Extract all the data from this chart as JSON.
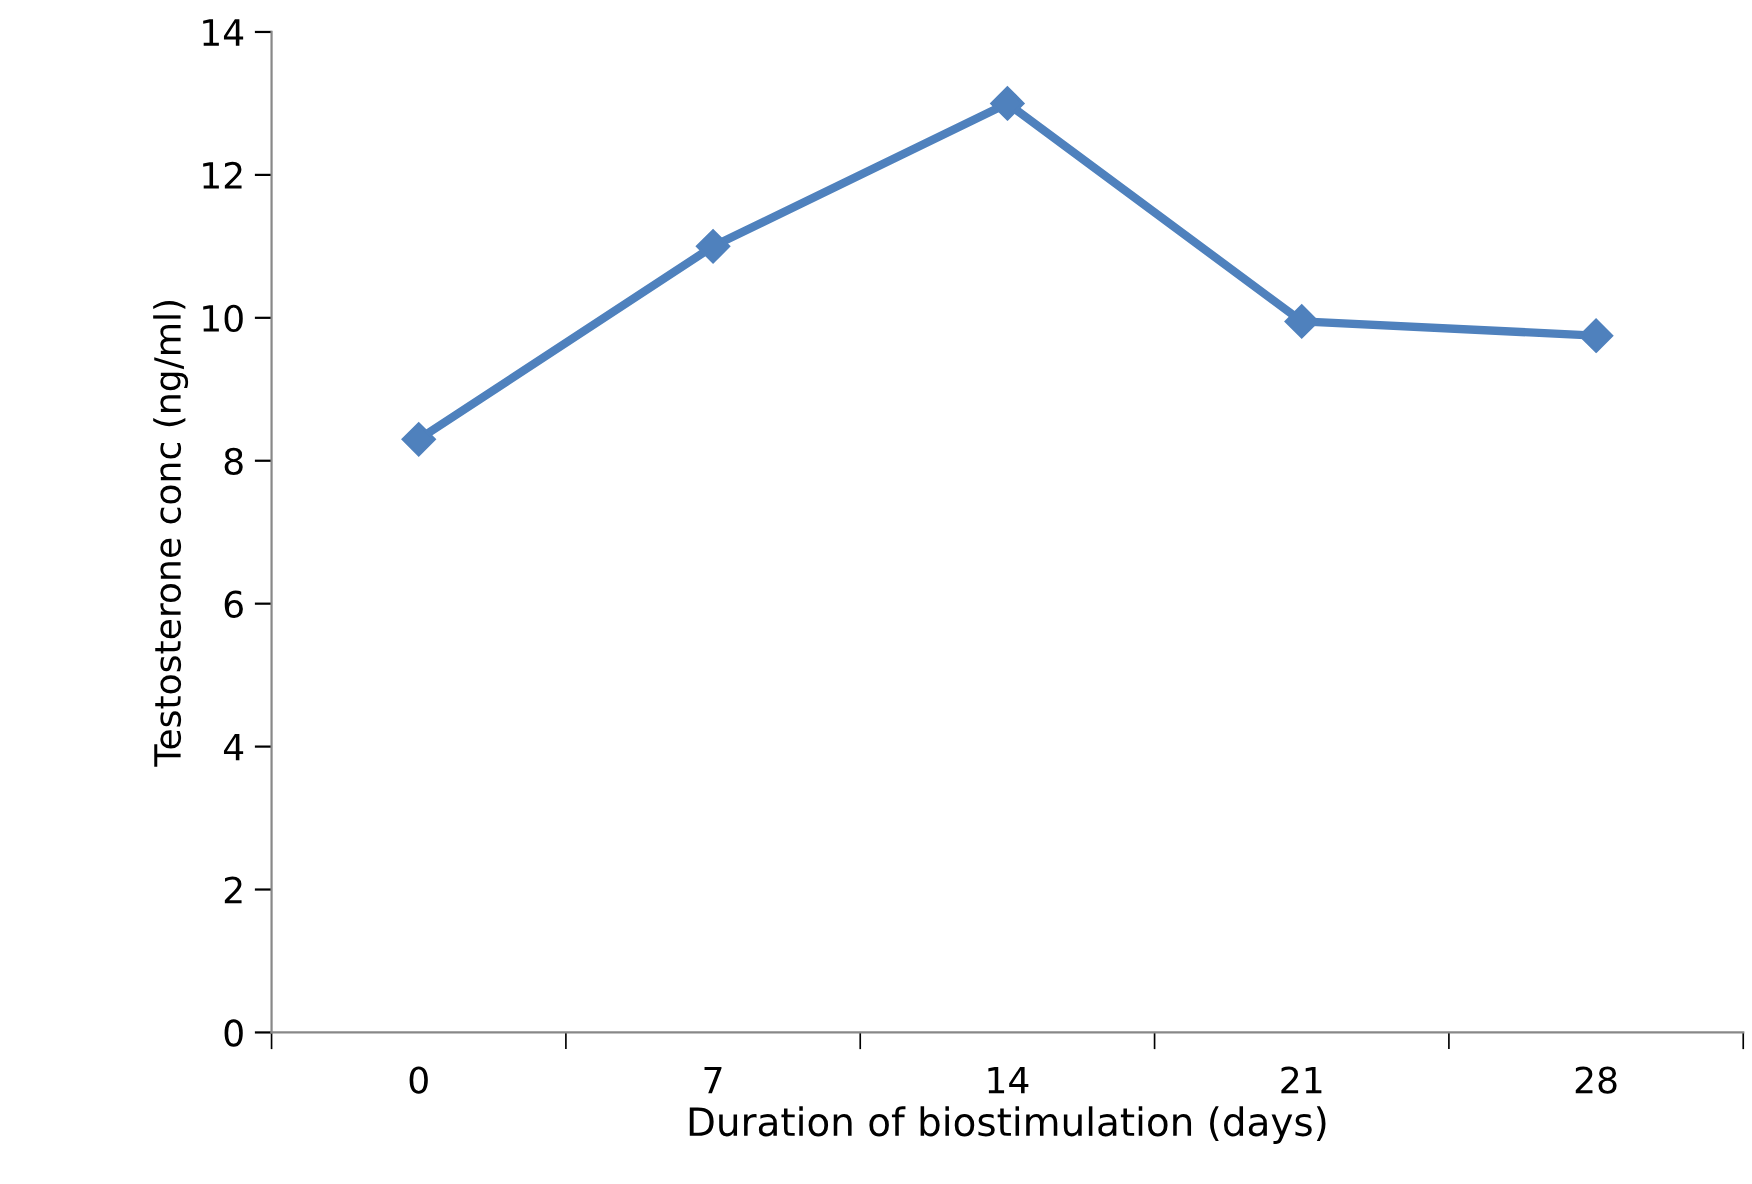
{
  "chart_data": {
    "type": "line",
    "xlabel": "Duration of biostimulation (days)",
    "ylabel": "Testosterone conc (ng/ml)",
    "categories": [
      "0",
      "7",
      "14",
      "21",
      "28"
    ],
    "series": [
      {
        "color": "#4f81bd",
        "values": [
          8.3,
          11.0,
          13.0,
          9.95,
          9.75
        ]
      }
    ],
    "ylim": [
      0,
      14
    ],
    "yticks": [
      0,
      2,
      4,
      6,
      8,
      10,
      12,
      14
    ],
    "marker": "diamond",
    "line_style": "solid",
    "grid": false,
    "legend": false
  }
}
